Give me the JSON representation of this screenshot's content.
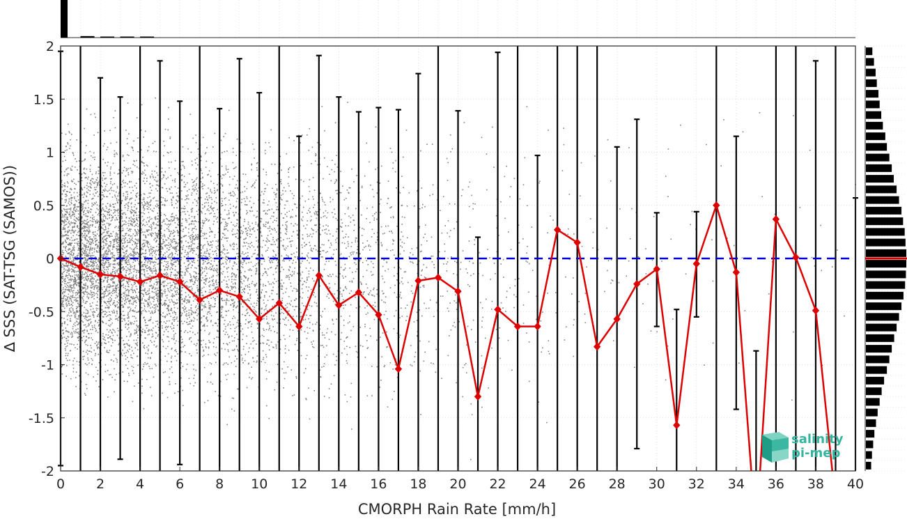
{
  "chart_data": {
    "type": "line",
    "title": "",
    "xlabel": "CMORPH Rain Rate [mm/h]",
    "ylabel": "∆ SSS (SAT-TSG (SAMOS))",
    "xlim": [
      0,
      40
    ],
    "ylim": [
      -2,
      2
    ],
    "xticks": [
      0,
      2,
      4,
      6,
      8,
      10,
      12,
      14,
      16,
      18,
      20,
      22,
      24,
      26,
      28,
      30,
      32,
      34,
      36,
      38,
      40
    ],
    "yticks": [
      2,
      1.5,
      1,
      0.5,
      0,
      -0.5,
      -1,
      -1.5,
      -2
    ],
    "grid": true,
    "reference_line": {
      "y": 0,
      "color": "#0000dd",
      "style": "dashed"
    },
    "mean_series": {
      "color": "#dd0000",
      "x": [
        0,
        1,
        2,
        3,
        4,
        5,
        6,
        7,
        8,
        9,
        10,
        11,
        12,
        13,
        14,
        15,
        16,
        17,
        18,
        19,
        20,
        21,
        22,
        23,
        24,
        25,
        26,
        27,
        28,
        29,
        30,
        31,
        32,
        33,
        34,
        35,
        36,
        37,
        38,
        39
      ],
      "y": [
        0,
        -0.08,
        -0.15,
        -0.17,
        -0.22,
        -0.16,
        -0.22,
        -0.39,
        -0.3,
        -0.36,
        -0.57,
        -0.42,
        -0.64,
        -0.16,
        -0.44,
        -0.32,
        -0.53,
        -1.04,
        -0.21,
        -0.18,
        -0.31,
        -1.3,
        -0.48,
        -0.64,
        -0.64,
        0.27,
        0.15,
        -0.83,
        -0.57,
        -0.24,
        -0.1,
        -1.57,
        -0.05,
        0.5,
        -0.13,
        -2.6,
        0.37,
        0.01,
        -0.49,
        -2.3
      ]
    },
    "error_bars": {
      "color": "#000000",
      "x": [
        0,
        1,
        2,
        3,
        4,
        5,
        6,
        7,
        8,
        9,
        10,
        11,
        12,
        13,
        14,
        15,
        16,
        17,
        18,
        19,
        20,
        21,
        22,
        23,
        24,
        25,
        26,
        27,
        28,
        29,
        30,
        31,
        32,
        33,
        34,
        35,
        36,
        37,
        38,
        39,
        40
      ],
      "upper": [
        1.95,
        2.1,
        1.7,
        1.52,
        2.1,
        1.86,
        1.48,
        2.1,
        1.41,
        1.88,
        1.56,
        2.1,
        1.15,
        1.91,
        1.52,
        1.38,
        1.42,
        1.4,
        1.74,
        2.1,
        1.39,
        0.2,
        1.94,
        2.1,
        0.97,
        2.1,
        2.1,
        2.1,
        1.05,
        1.31,
        0.43,
        -0.48,
        0.44,
        2.1,
        1.15,
        -0.87,
        2.1,
        2.1,
        1.86,
        2.1,
        0.57
      ],
      "lower": [
        -1.95,
        -2.1,
        -2.1,
        -1.89,
        -2.1,
        -2.1,
        -1.94,
        -2.1,
        -2.1,
        -2.1,
        -2.1,
        -2.1,
        -2.1,
        -2.1,
        -2.1,
        -2.1,
        -2.1,
        -2.1,
        -2.1,
        -2.1,
        -2.1,
        -2.1,
        -2.1,
        -2.1,
        -2.1,
        -2.1,
        -2.1,
        -2.1,
        -2.1,
        -1.79,
        -0.64,
        -2.1,
        -0.55,
        -2.1,
        -1.42,
        -2.1,
        -2.1,
        -2.1,
        -2.1,
        -2.1,
        -2.1
      ]
    },
    "scatter": {
      "color": "#808080",
      "density_by_x": [
        1,
        0.95,
        0.85,
        0.78,
        0.7,
        0.63,
        0.56,
        0.49,
        0.43,
        0.37,
        0.32,
        0.27,
        0.23,
        0.19,
        0.16,
        0.13,
        0.11,
        0.09,
        0.075,
        0.062,
        0.05,
        0.042,
        0.035,
        0.029,
        0.024,
        0.02,
        0.017,
        0.014,
        0.012,
        0.01,
        0.009,
        0.008,
        0.007,
        0.006,
        0.005,
        0.005,
        0.004,
        0.004,
        0.004,
        0.003
      ]
    },
    "top_histogram": {
      "x": [
        0,
        1,
        2,
        3,
        4
      ],
      "heights": [
        1.0,
        0.04,
        0.02,
        0.015,
        0.01
      ]
    },
    "right_histogram": {
      "y": [
        1.95,
        1.85,
        1.75,
        1.65,
        1.55,
        1.45,
        1.35,
        1.25,
        1.15,
        1.05,
        0.95,
        0.85,
        0.75,
        0.65,
        0.55,
        0.45,
        0.35,
        0.25,
        0.15,
        0.05,
        -0.05,
        -0.15,
        -0.25,
        -0.35,
        -0.45,
        -0.55,
        -0.65,
        -0.75,
        -0.85,
        -0.95,
        -1.05,
        -1.15,
        -1.25,
        -1.35,
        -1.45,
        -1.55,
        -1.65,
        -1.75,
        -1.85,
        -1.95
      ],
      "heights": [
        0.16,
        0.2,
        0.24,
        0.27,
        0.31,
        0.34,
        0.38,
        0.42,
        0.48,
        0.52,
        0.58,
        0.64,
        0.69,
        0.76,
        0.82,
        0.88,
        0.92,
        0.96,
        0.98,
        1.0,
        1.0,
        0.99,
        0.97,
        0.93,
        0.88,
        0.82,
        0.76,
        0.7,
        0.64,
        0.58,
        0.52,
        0.45,
        0.39,
        0.34,
        0.29,
        0.25,
        0.21,
        0.18,
        0.15,
        0.13
      ],
      "median_color": "#dd0000"
    }
  },
  "logo": {
    "line1": "salinity",
    "line2": "pi-mep",
    "icon": "salinity-cube-icon",
    "color": "#34b5a0"
  }
}
